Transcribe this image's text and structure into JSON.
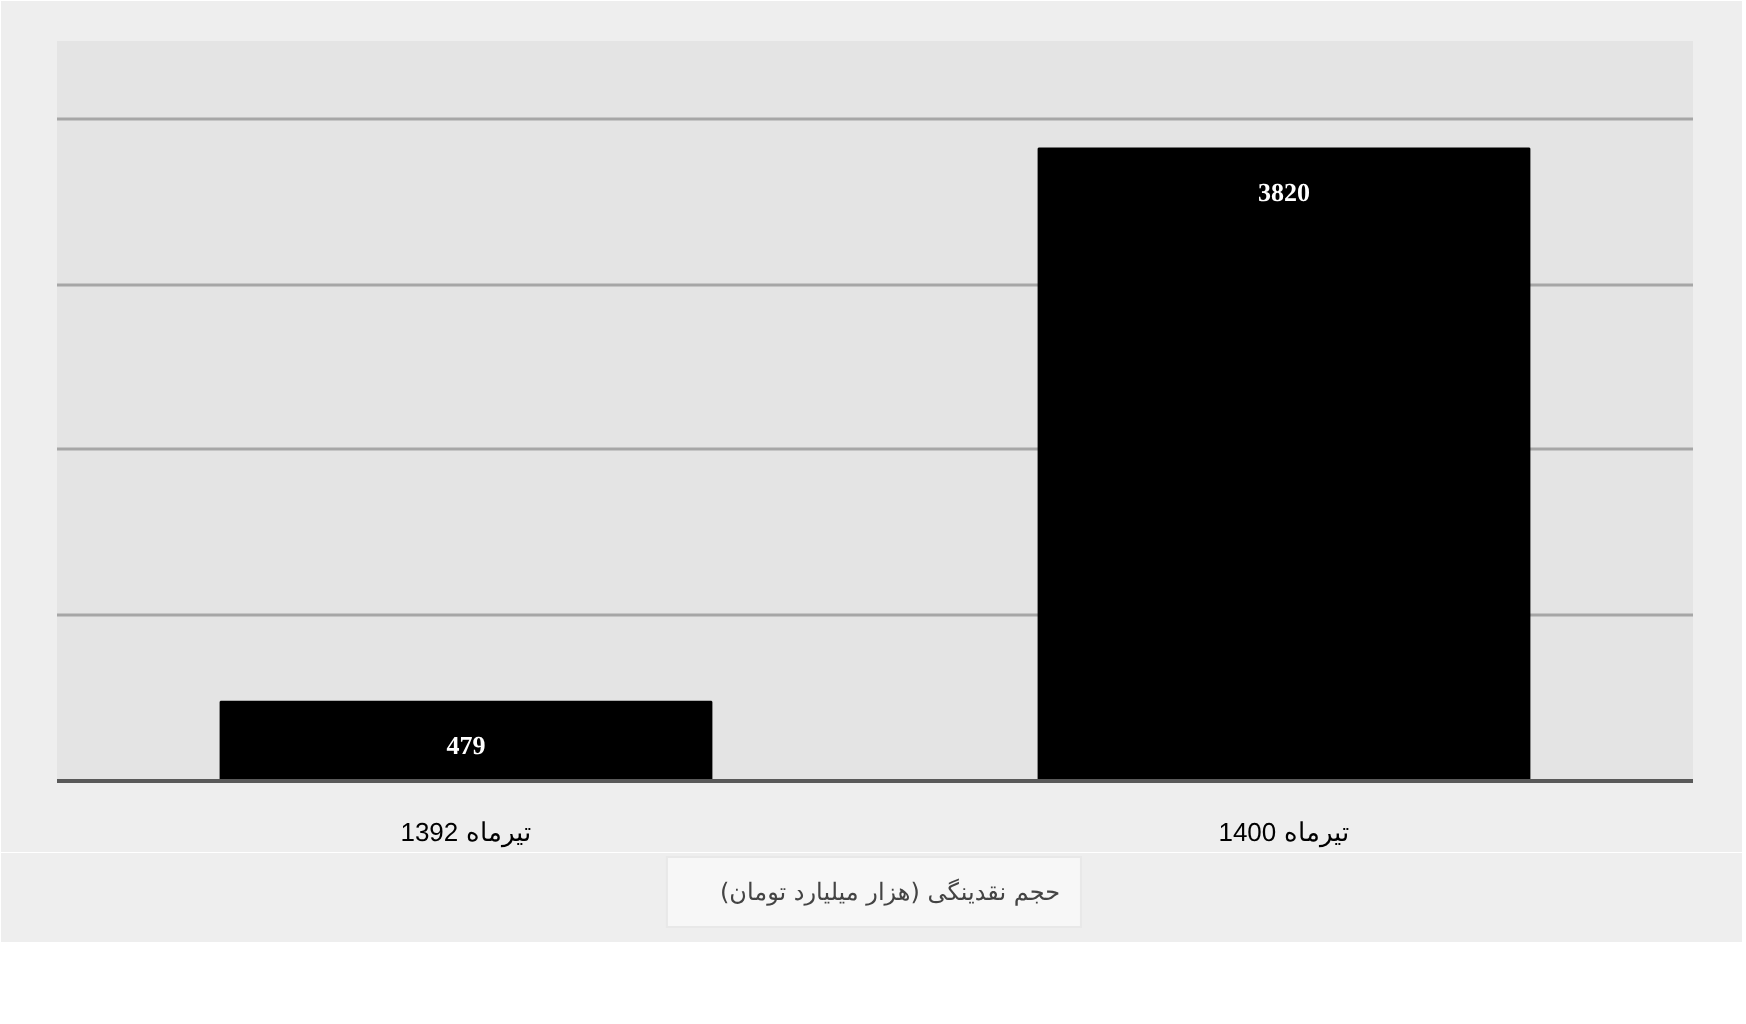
{
  "chart_data": {
    "type": "bar",
    "categories": [
      "تیرماه 1392",
      "تیرماه 1400"
    ],
    "series": [
      {
        "name": "حجم نقدینگی (هزار میلیارد تومان)",
        "color": "#000000",
        "values": [
          479,
          3820
        ]
      }
    ],
    "tick_labels": "x",
    "grid": "y",
    "legend": "bottom",
    "data_labels": true
  }
}
